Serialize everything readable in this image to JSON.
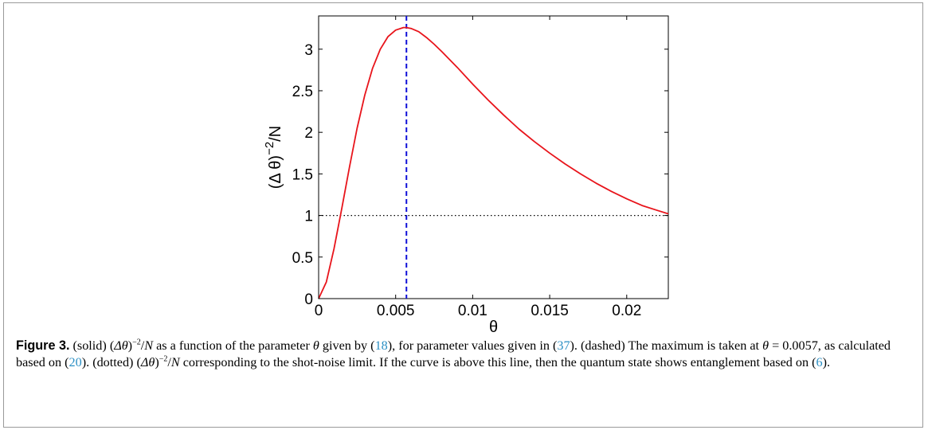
{
  "chart_data": {
    "type": "line",
    "title": "",
    "xlabel": "θ",
    "ylabel": "(Δ θ)",
    "ylabel_sup": "−2",
    "ylabel_tail": "/N",
    "xlim": [
      0,
      0.0227
    ],
    "ylim": [
      0,
      3.4
    ],
    "xticks": [
      0,
      0.005,
      0.01,
      0.015,
      0.02
    ],
    "xtick_labels": [
      "0",
      "0.005",
      "0.01",
      "0.015",
      "0.02"
    ],
    "yticks": [
      0,
      0.5,
      1,
      1.5,
      2,
      2.5,
      3
    ],
    "ytick_labels": [
      "0",
      "0.5",
      "1",
      "1.5",
      "2",
      "2.5",
      "3"
    ],
    "grid": false,
    "series": [
      {
        "style": "solid",
        "color": "#e8141b",
        "x": [
          0,
          0.0005,
          0.001,
          0.0015,
          0.002,
          0.0025,
          0.003,
          0.0035,
          0.004,
          0.0045,
          0.005,
          0.0055,
          0.0057,
          0.006,
          0.0065,
          0.007,
          0.0075,
          0.008,
          0.009,
          0.01,
          0.011,
          0.012,
          0.013,
          0.014,
          0.015,
          0.016,
          0.017,
          0.018,
          0.019,
          0.02,
          0.021,
          0.022,
          0.0227
        ],
        "y": [
          0,
          0.2,
          0.6,
          1.08,
          1.58,
          2.05,
          2.45,
          2.77,
          3.0,
          3.15,
          3.23,
          3.26,
          3.26,
          3.25,
          3.21,
          3.14,
          3.06,
          2.97,
          2.78,
          2.58,
          2.39,
          2.21,
          2.04,
          1.89,
          1.75,
          1.62,
          1.5,
          1.39,
          1.29,
          1.2,
          1.12,
          1.06,
          1.02
        ]
      }
    ],
    "reference_lines": [
      {
        "orientation": "vertical",
        "value": 0.0057,
        "style": "dashed",
        "color": "#1010d8"
      },
      {
        "orientation": "horizontal",
        "value": 1,
        "style": "dotted",
        "color": "#000000"
      }
    ]
  },
  "caption": {
    "label": "Figure 3.",
    "s1": " (solid) (",
    "delta_theta": "Δθ",
    "s2": ")",
    "sup1": "−2",
    "s3": "/",
    "n1": "N",
    "s4": " as a function of the parameter ",
    "theta1": "θ",
    "s5": " given by (",
    "ref18": "18",
    "s6": "), for parameter values given in (",
    "ref37": "37",
    "s7": "). (dashed) The maximum is taken at ",
    "theta2": "θ",
    "s8": " = 0.0057, as calculated based on (",
    "ref20": "20",
    "s9": "). (dotted) (",
    "delta_theta2": "Δθ",
    "s10": ")",
    "sup2": "−2",
    "s11": "/",
    "n2": "N",
    "s12": " corresponding to the shot-noise limit. If the curve is above this line, then the quantum state shows entanglement based on (",
    "ref6": "6",
    "s13": ")."
  }
}
